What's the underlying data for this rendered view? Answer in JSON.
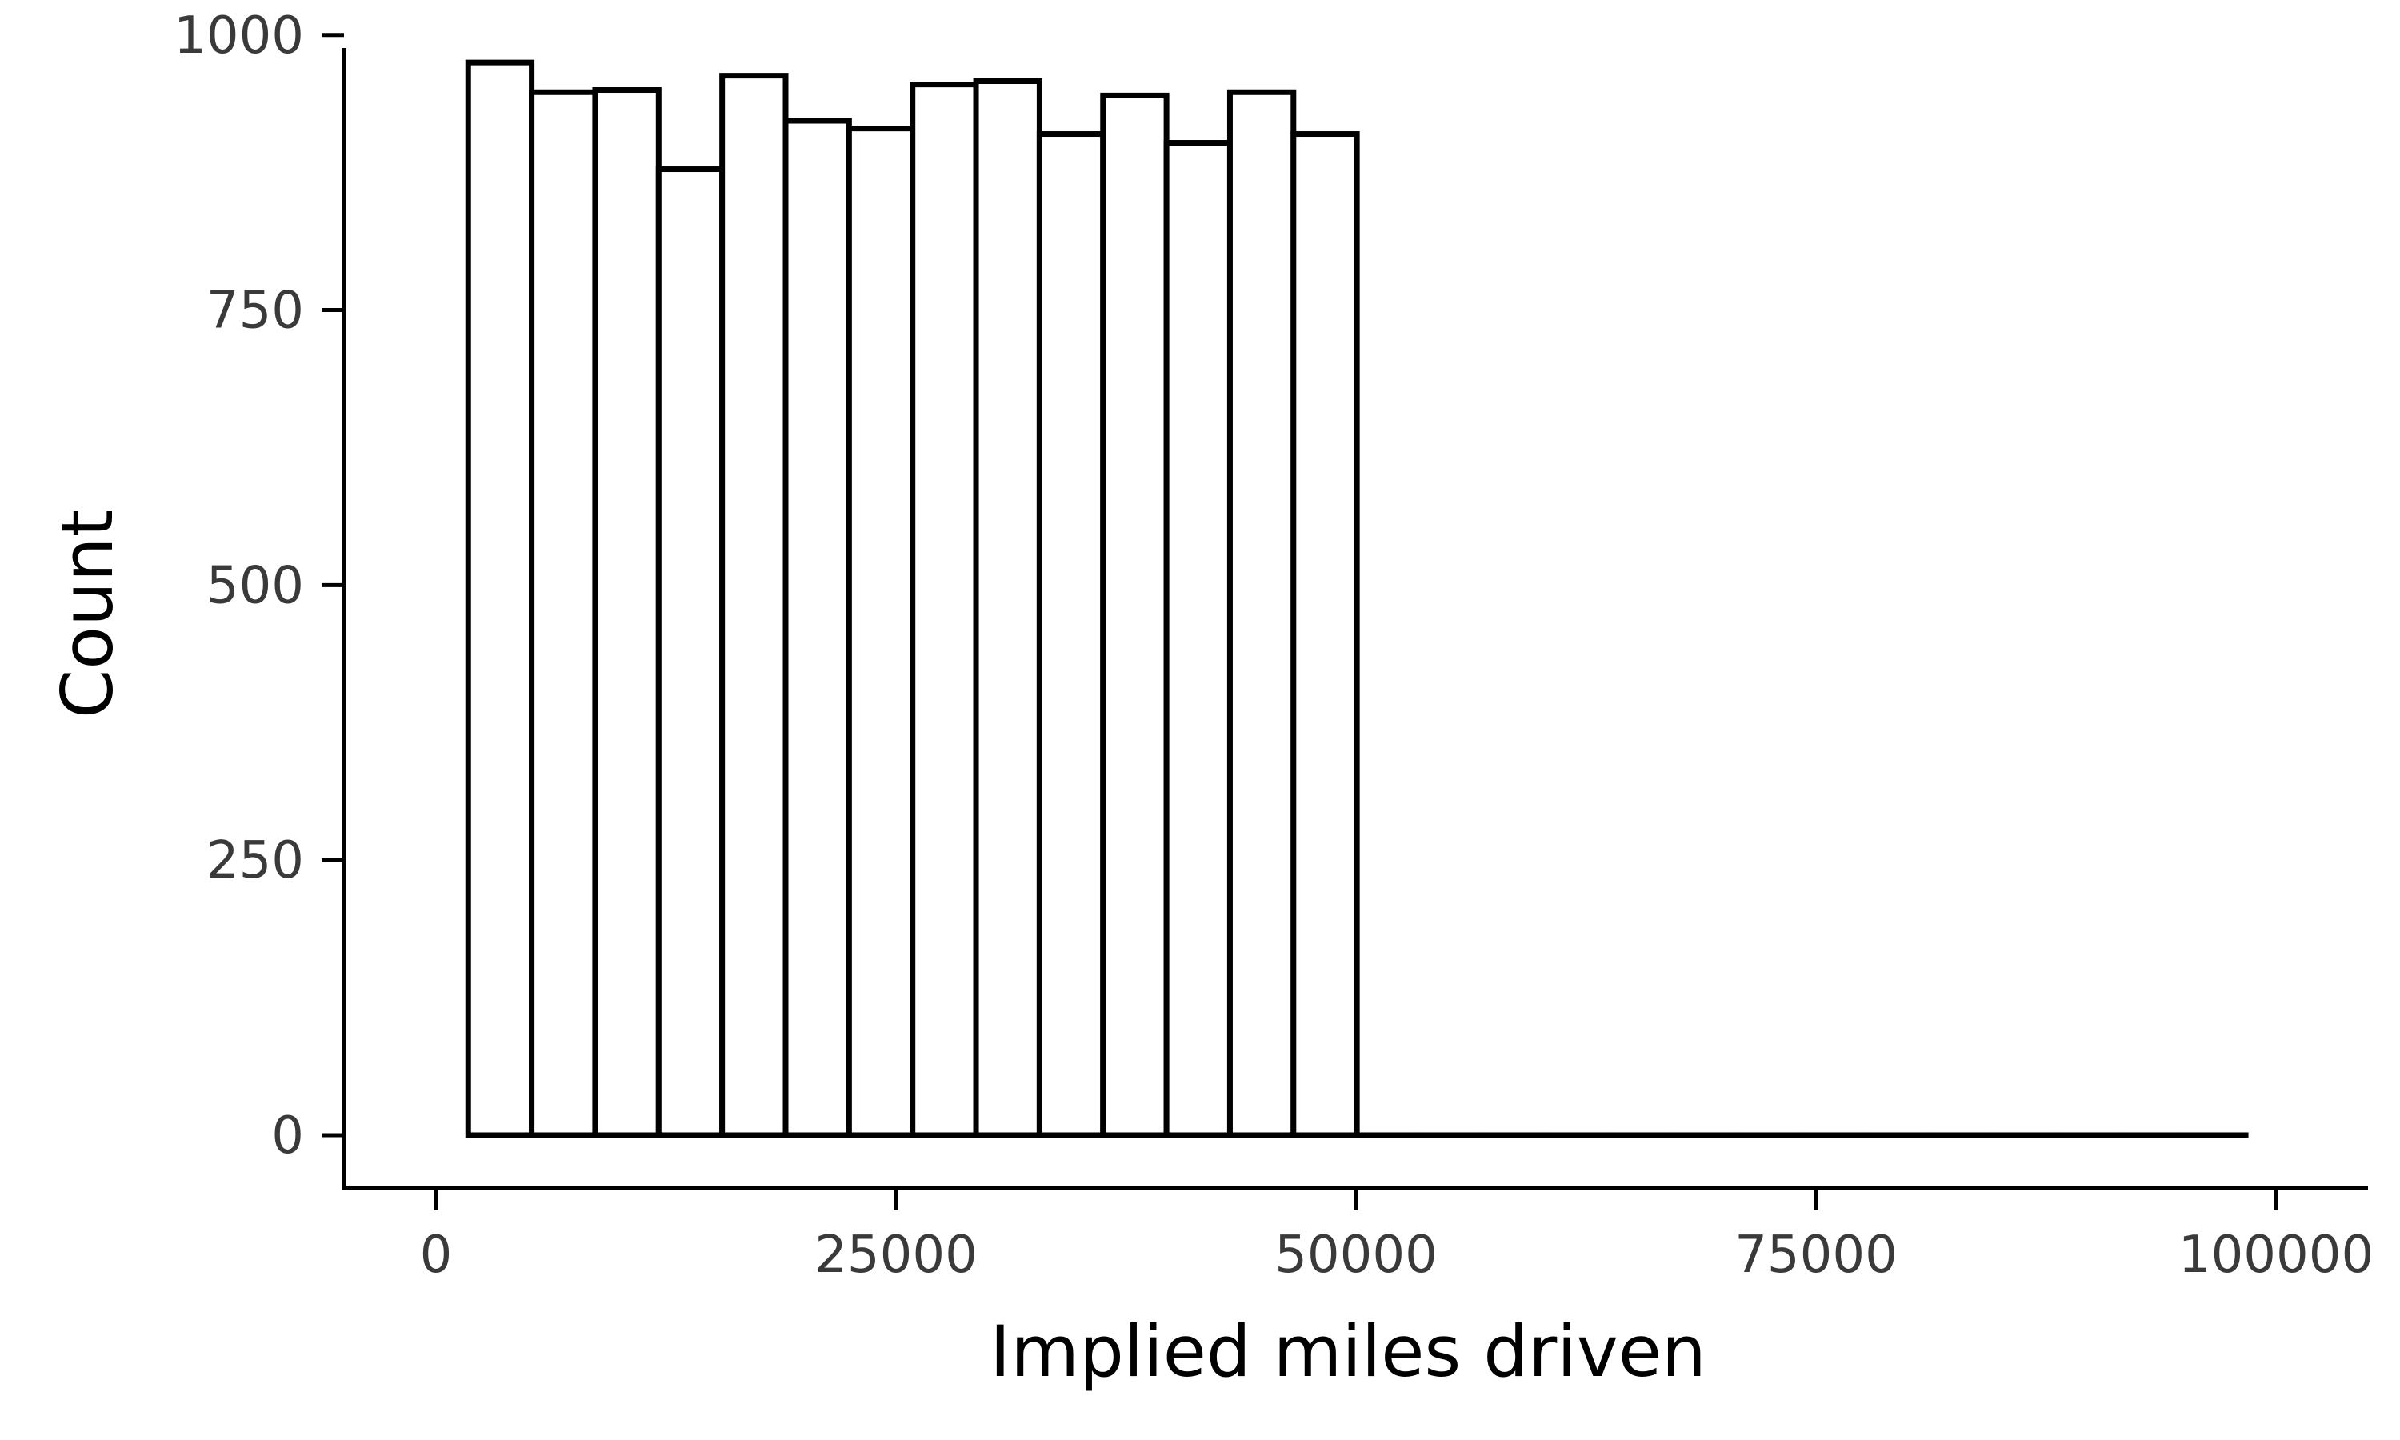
{
  "chart_data": {
    "type": "bar",
    "subtype": "histogram",
    "title": "",
    "xlabel": "Implied miles driven",
    "ylabel": "Count",
    "xlim": [
      -5000,
      105000
    ],
    "ylim": [
      -48,
      1010
    ],
    "x_ticks": [
      0,
      25000,
      50000,
      75000,
      100000
    ],
    "x_tick_labels": [
      "0",
      "25000",
      "50000",
      "75000",
      "100000"
    ],
    "y_ticks": [
      0,
      250,
      500,
      750,
      1000
    ],
    "y_tick_labels": [
      "0",
      "250",
      "500",
      "750",
      "1000"
    ],
    "grid": false,
    "legend": "none",
    "bar_fill": "#ffffff",
    "bar_stroke": "#000000",
    "bins": [
      {
        "x0": 1750,
        "x1": 5200,
        "count": 975
      },
      {
        "x0": 5200,
        "x1": 8650,
        "count": 948
      },
      {
        "x0": 8650,
        "x1": 12100,
        "count": 950
      },
      {
        "x0": 12100,
        "x1": 15550,
        "count": 878
      },
      {
        "x0": 15550,
        "x1": 19000,
        "count": 963
      },
      {
        "x0": 19000,
        "x1": 22450,
        "count": 922
      },
      {
        "x0": 22450,
        "x1": 25900,
        "count": 915
      },
      {
        "x0": 25900,
        "x1": 29350,
        "count": 955
      },
      {
        "x0": 29350,
        "x1": 32800,
        "count": 958
      },
      {
        "x0": 32800,
        "x1": 36250,
        "count": 910
      },
      {
        "x0": 36250,
        "x1": 39700,
        "count": 945
      },
      {
        "x0": 39700,
        "x1": 43150,
        "count": 902
      },
      {
        "x0": 43150,
        "x1": 46600,
        "count": 948
      },
      {
        "x0": 46600,
        "x1": 50050,
        "count": 910
      },
      {
        "x0": 50050,
        "x1": 53500,
        "count": 0
      },
      {
        "x0": 53500,
        "x1": 56950,
        "count": 0
      },
      {
        "x0": 56950,
        "x1": 60400,
        "count": 0
      },
      {
        "x0": 60400,
        "x1": 63850,
        "count": 0
      },
      {
        "x0": 63850,
        "x1": 67300,
        "count": 0
      },
      {
        "x0": 67300,
        "x1": 70750,
        "count": 0
      },
      {
        "x0": 70750,
        "x1": 74200,
        "count": 0
      },
      {
        "x0": 74200,
        "x1": 77650,
        "count": 0
      },
      {
        "x0": 77650,
        "x1": 81100,
        "count": 0
      },
      {
        "x0": 81100,
        "x1": 84550,
        "count": 0
      },
      {
        "x0": 84550,
        "x1": 88000,
        "count": 0
      },
      {
        "x0": 88000,
        "x1": 91450,
        "count": 0
      },
      {
        "x0": 91450,
        "x1": 94900,
        "count": 0
      },
      {
        "x0": 94900,
        "x1": 98350,
        "count": 0
      }
    ]
  }
}
